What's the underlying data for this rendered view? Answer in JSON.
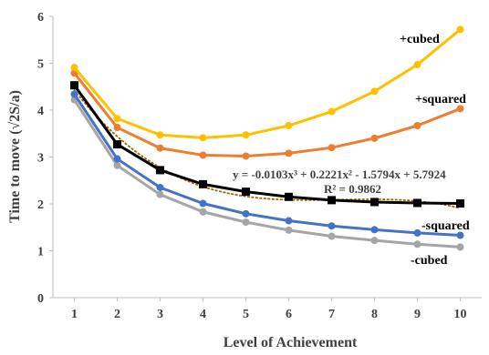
{
  "chart_data": {
    "type": "line",
    "xlabel": "Level of Achievement",
    "ylabel": "Time to move (√2S/a)",
    "x": [
      1,
      2,
      3,
      4,
      5,
      6,
      7,
      8,
      9,
      10
    ],
    "xlim": [
      0.5,
      10.5
    ],
    "ylim": [
      0,
      6
    ],
    "yticks": [
      0,
      1,
      2,
      3,
      4,
      5,
      6
    ],
    "grid": false,
    "legend": "none",
    "series": [
      {
        "name": "+cubed",
        "color": "#FFC000",
        "marker": "circle",
        "values": [
          4.91,
          3.82,
          3.47,
          3.41,
          3.47,
          3.67,
          3.97,
          4.4,
          4.97,
          5.72
        ]
      },
      {
        "name": "+squared",
        "color": "#ED7D31",
        "marker": "circle",
        "values": [
          4.79,
          3.63,
          3.19,
          3.04,
          3.02,
          3.08,
          3.2,
          3.4,
          3.67,
          4.03
        ]
      },
      {
        "name": "",
        "color": "#000000",
        "marker": "square",
        "values": [
          4.53,
          3.27,
          2.72,
          2.42,
          2.26,
          2.15,
          2.08,
          2.04,
          2.02,
          2.01
        ]
      },
      {
        "name": "-squared",
        "color": "#4472C4",
        "marker": "circle",
        "values": [
          4.34,
          2.96,
          2.35,
          2.01,
          1.79,
          1.64,
          1.53,
          1.45,
          1.38,
          1.33
        ]
      },
      {
        "name": "-cubed",
        "color": "#A5A5A5",
        "marker": "circle",
        "values": [
          4.22,
          2.82,
          2.2,
          1.83,
          1.61,
          1.44,
          1.31,
          1.22,
          1.14,
          1.08
        ]
      }
    ],
    "trendline": {
      "type": "polynomial",
      "order": 3,
      "color": "#996600",
      "style": "dotted",
      "coefficients": [
        -0.0103,
        0.2221,
        -1.5794,
        5.7924
      ],
      "equation": "y = -0.0103x³ + 0.2221x² - 1.5794x + 5.7924",
      "r_squared": "R² = 0.9862"
    }
  }
}
